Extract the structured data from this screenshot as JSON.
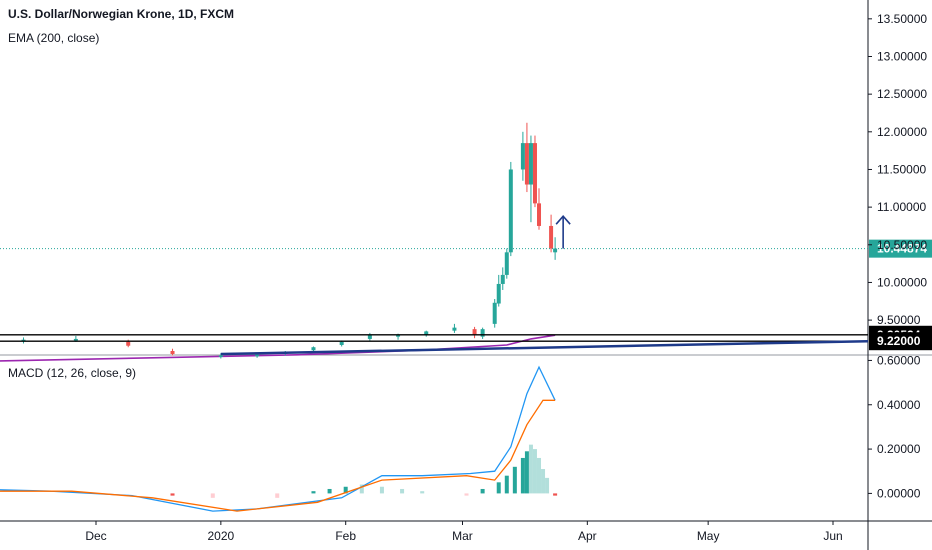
{
  "chart_data": [
    {
      "type": "candlestick",
      "title": "U.S. Dollar/Norwegian Krone, 1D, FXCM",
      "indicator_label": "EMA (200, close)",
      "y_range": [
        9.05,
        13.75
      ],
      "y_ticks": [
        "13.50000",
        "13.00000",
        "12.50000",
        "12.00000",
        "11.50000",
        "11.00000",
        "10.50000",
        "10.00000",
        "9.50000"
      ],
      "last_price": {
        "value": 10.44874,
        "label": "10.44874",
        "color": "#26a69a"
      },
      "levels": [
        {
          "value": 9.30524,
          "label": "9.30524"
        },
        {
          "value": 9.22,
          "label": "9.22000"
        }
      ],
      "series": [
        {
          "name": "price",
          "points": [
            {
              "date": "2019-11-01",
              "o": 9.2,
              "h": 9.24,
              "l": 9.16,
              "c": 9.21
            },
            {
              "date": "2019-11-13",
              "o": 9.22,
              "h": 9.27,
              "l": 9.19,
              "c": 9.24
            },
            {
              "date": "2019-11-26",
              "o": 9.24,
              "h": 9.29,
              "l": 9.21,
              "c": 9.25
            },
            {
              "date": "2019-12-09",
              "o": 9.21,
              "h": 9.24,
              "l": 9.14,
              "c": 9.16
            },
            {
              "date": "2019-12-20",
              "o": 9.09,
              "h": 9.12,
              "l": 9.03,
              "c": 9.05
            },
            {
              "date": "2020-01-01",
              "o": 9.02,
              "h": 9.06,
              "l": 8.99,
              "c": 9.03
            },
            {
              "date": "2020-01-10",
              "o": 9.02,
              "h": 9.06,
              "l": 9.0,
              "c": 9.04
            },
            {
              "date": "2020-01-17",
              "o": 9.05,
              "h": 9.09,
              "l": 9.03,
              "c": 9.08
            },
            {
              "date": "2020-01-24",
              "o": 9.1,
              "h": 9.15,
              "l": 9.08,
              "c": 9.14
            },
            {
              "date": "2020-01-31",
              "o": 9.17,
              "h": 9.23,
              "l": 9.15,
              "c": 9.21
            },
            {
              "date": "2020-02-07",
              "o": 9.25,
              "h": 9.33,
              "l": 9.23,
              "c": 9.3
            },
            {
              "date": "2020-02-14",
              "o": 9.28,
              "h": 9.32,
              "l": 9.24,
              "c": 9.3
            },
            {
              "date": "2020-02-21",
              "o": 9.3,
              "h": 9.36,
              "l": 9.28,
              "c": 9.35
            },
            {
              "date": "2020-02-28",
              "o": 9.36,
              "h": 9.45,
              "l": 9.33,
              "c": 9.4
            },
            {
              "date": "2020-03-04",
              "o": 9.38,
              "h": 9.41,
              "l": 9.26,
              "c": 9.31
            },
            {
              "date": "2020-03-06",
              "o": 9.28,
              "h": 9.4,
              "l": 9.25,
              "c": 9.38
            },
            {
              "date": "2020-03-09",
              "o": 9.45,
              "h": 9.78,
              "l": 9.4,
              "c": 9.73
            },
            {
              "date": "2020-03-10",
              "o": 9.72,
              "h": 10.1,
              "l": 9.68,
              "c": 9.98
            },
            {
              "date": "2020-03-11",
              "o": 9.98,
              "h": 10.2,
              "l": 9.9,
              "c": 10.1
            },
            {
              "date": "2020-03-12",
              "o": 10.1,
              "h": 10.45,
              "l": 10.05,
              "c": 10.4
            },
            {
              "date": "2020-03-13",
              "o": 10.4,
              "h": 11.6,
              "l": 10.35,
              "c": 11.5
            },
            {
              "date": "2020-03-16",
              "o": 11.5,
              "h": 12.0,
              "l": 11.35,
              "c": 11.85
            },
            {
              "date": "2020-03-17",
              "o": 11.85,
              "h": 12.12,
              "l": 11.2,
              "c": 11.3
            },
            {
              "date": "2020-03-18",
              "o": 11.3,
              "h": 11.95,
              "l": 10.8,
              "c": 11.85
            },
            {
              "date": "2020-03-19",
              "o": 11.85,
              "h": 11.95,
              "l": 11.0,
              "c": 11.05
            },
            {
              "date": "2020-03-20",
              "o": 11.05,
              "h": 11.25,
              "l": 10.7,
              "c": 10.75
            },
            {
              "date": "2020-03-23",
              "o": 10.75,
              "h": 10.9,
              "l": 10.4,
              "c": 10.45
            },
            {
              "date": "2020-03-24",
              "o": 10.4,
              "h": 10.6,
              "l": 10.3,
              "c": 10.45
            }
          ]
        },
        {
          "name": "EMA (200, close)",
          "color": "#9c27b0",
          "points": [
            {
              "date": "2019-11-01",
              "v": 8.95
            },
            {
              "date": "2019-12-15",
              "v": 9.0
            },
            {
              "date": "2020-01-20",
              "v": 9.04
            },
            {
              "date": "2020-02-20",
              "v": 9.1
            },
            {
              "date": "2020-03-12",
              "v": 9.17
            },
            {
              "date": "2020-03-18",
              "v": 9.25
            },
            {
              "date": "2020-03-24",
              "v": 9.3
            }
          ]
        }
      ],
      "annotations": [
        {
          "type": "arrow-up",
          "date": "2020-03-25",
          "from": 10.45,
          "to": 10.88,
          "color": "#1e3a8a"
        },
        {
          "type": "trend-line",
          "from_date": "2020-01-01",
          "from_value": 9.05,
          "to_date": "2020-06-20",
          "to_value": 9.22,
          "color": "#1e3a8a"
        }
      ],
      "x_ticks": [
        {
          "date": "2019-12-01",
          "label": "Dec"
        },
        {
          "date": "2020-01-01",
          "label": "2020"
        },
        {
          "date": "2020-02-01",
          "label": "Feb"
        },
        {
          "date": "2020-03-01",
          "label": "Mar"
        },
        {
          "date": "2020-04-01",
          "label": "Apr"
        },
        {
          "date": "2020-05-01",
          "label": "May"
        },
        {
          "date": "2020-06-01",
          "label": "Jun"
        }
      ],
      "candle_colors": {
        "up": "#26a69a",
        "down": "#ef5350"
      }
    },
    {
      "type": "macd",
      "title": "MACD (12, 26, close, 9)",
      "y_range": [
        -0.12,
        0.62
      ],
      "y_ticks": [
        "0.60000",
        "0.40000",
        "0.20000",
        "0.00000"
      ],
      "macd_color": "#2196f3",
      "signal_color": "#ff6d00",
      "series": [
        {
          "name": "MACD",
          "points": [
            {
              "date": "2019-11-01",
              "v": 0.02
            },
            {
              "date": "2019-11-20",
              "v": 0.01
            },
            {
              "date": "2019-12-10",
              "v": -0.01
            },
            {
              "date": "2019-12-30",
              "v": -0.08
            },
            {
              "date": "2020-01-10",
              "v": -0.07
            },
            {
              "date": "2020-01-31",
              "v": -0.02
            },
            {
              "date": "2020-02-10",
              "v": 0.08
            },
            {
              "date": "2020-02-20",
              "v": 0.08
            },
            {
              "date": "2020-03-03",
              "v": 0.09
            },
            {
              "date": "2020-03-09",
              "v": 0.1
            },
            {
              "date": "2020-03-13",
              "v": 0.21
            },
            {
              "date": "2020-03-17",
              "v": 0.45
            },
            {
              "date": "2020-03-20",
              "v": 0.57
            },
            {
              "date": "2020-03-24",
              "v": 0.42
            }
          ]
        },
        {
          "name": "Signal",
          "points": [
            {
              "date": "2019-11-01",
              "v": 0.01
            },
            {
              "date": "2019-11-25",
              "v": 0.01
            },
            {
              "date": "2019-12-15",
              "v": -0.02
            },
            {
              "date": "2020-01-05",
              "v": -0.08
            },
            {
              "date": "2020-01-25",
              "v": -0.04
            },
            {
              "date": "2020-02-10",
              "v": 0.06
            },
            {
              "date": "2020-03-02",
              "v": 0.08
            },
            {
              "date": "2020-03-09",
              "v": 0.06
            },
            {
              "date": "2020-03-13",
              "v": 0.15
            },
            {
              "date": "2020-03-17",
              "v": 0.31
            },
            {
              "date": "2020-03-21",
              "v": 0.42
            },
            {
              "date": "2020-03-24",
              "v": 0.42
            }
          ]
        },
        {
          "name": "Histogram",
          "points": [
            {
              "date": "2019-12-20",
              "v": -0.01
            },
            {
              "date": "2019-12-30",
              "v": -0.02
            },
            {
              "date": "2020-01-15",
              "v": -0.02
            },
            {
              "date": "2020-01-24",
              "v": 0.01
            },
            {
              "date": "2020-01-28",
              "v": 0.02
            },
            {
              "date": "2020-02-01",
              "v": 0.03
            },
            {
              "date": "2020-02-05",
              "v": 0.04
            },
            {
              "date": "2020-02-10",
              "v": 0.03
            },
            {
              "date": "2020-02-15",
              "v": 0.02
            },
            {
              "date": "2020-02-20",
              "v": 0.01
            },
            {
              "date": "2020-03-02",
              "v": -0.01
            },
            {
              "date": "2020-03-06",
              "v": 0.02
            },
            {
              "date": "2020-03-10",
              "v": 0.05
            },
            {
              "date": "2020-03-12",
              "v": 0.08
            },
            {
              "date": "2020-03-14",
              "v": 0.12
            },
            {
              "date": "2020-03-16",
              "v": 0.16
            },
            {
              "date": "2020-03-17",
              "v": 0.19
            },
            {
              "date": "2020-03-18",
              "v": 0.22
            },
            {
              "date": "2020-03-19",
              "v": 0.2
            },
            {
              "date": "2020-03-20",
              "v": 0.16
            },
            {
              "date": "2020-03-21",
              "v": 0.11
            },
            {
              "date": "2020-03-22",
              "v": 0.07
            },
            {
              "date": "2020-03-24",
              "v": -0.01
            }
          ]
        }
      ]
    }
  ]
}
